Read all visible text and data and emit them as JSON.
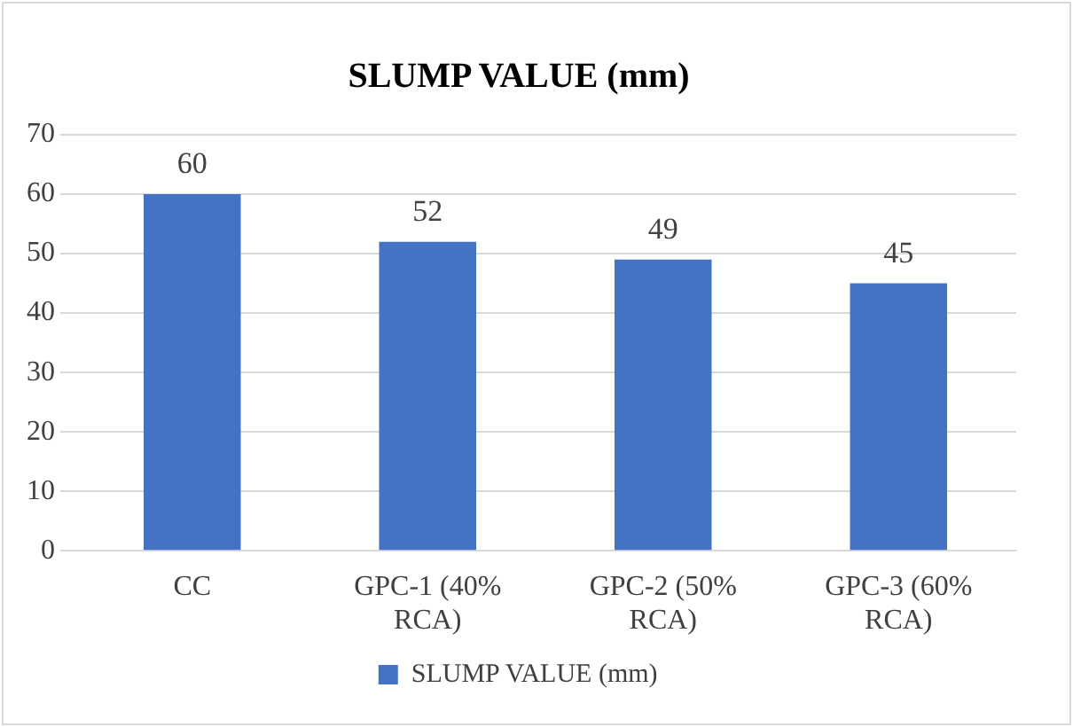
{
  "chart_data": {
    "type": "bar",
    "title": "SLUMP VALUE (mm)",
    "categories": [
      "CC",
      "GPC-1 (40% RCA)",
      "GPC-2 (50% RCA)",
      "GPC-3 (60% RCA)"
    ],
    "series": [
      {
        "name": "SLUMP VALUE (mm)",
        "color": "#4472c4",
        "values": [
          60,
          52,
          49,
          45
        ]
      }
    ],
    "ylim": [
      0,
      70
    ],
    "yticks": [
      0,
      10,
      20,
      30,
      40,
      50,
      60,
      70
    ],
    "grid": "y",
    "legend": "bottom",
    "data_labels": true
  }
}
